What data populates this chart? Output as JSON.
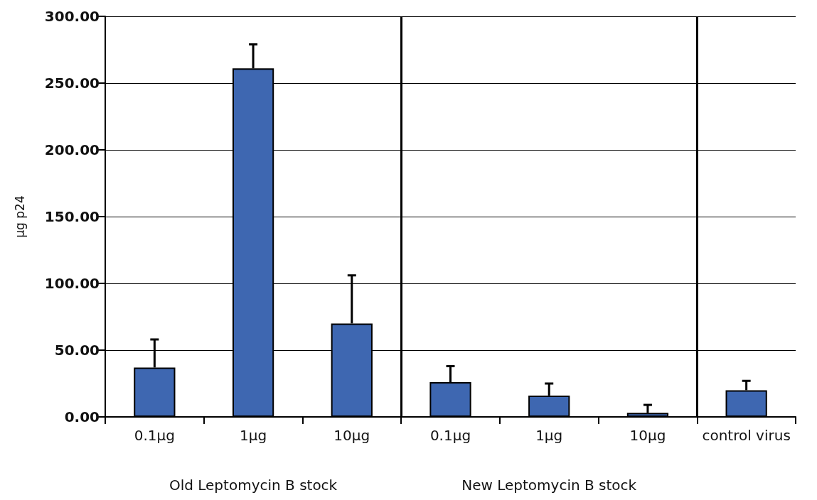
{
  "chart_data": {
    "type": "bar",
    "ylabel": "μg p24",
    "categories": [
      "0.1μg",
      "1μg",
      "10μg",
      "0.1μg",
      "1μg",
      "10μg",
      "control virus"
    ],
    "series": [
      {
        "color": "#3e67b1",
        "values": [
          37,
          261,
          70,
          26,
          16,
          3,
          20
        ],
        "errors": [
          [
            37,
            58
          ],
          [
            261,
            279
          ],
          [
            70,
            106
          ],
          [
            26,
            38
          ],
          [
            16,
            25
          ],
          [
            3,
            9
          ],
          [
            20,
            27
          ]
        ]
      }
    ],
    "ylim": [
      0,
      300
    ],
    "yticks": [
      {
        "value": 0,
        "label": "0.00"
      },
      {
        "value": 50,
        "label": "50.00"
      },
      {
        "value": 100,
        "label": "100.00"
      },
      {
        "value": 150,
        "label": "150.00"
      },
      {
        "value": 200,
        "label": "200.00"
      },
      {
        "value": 250,
        "label": "250.00"
      },
      {
        "value": 300,
        "label": "300.00"
      }
    ],
    "annotations": [
      "Old Leptomycin B stock",
      "New Leptomycin B stock"
    ],
    "grid": "y"
  }
}
